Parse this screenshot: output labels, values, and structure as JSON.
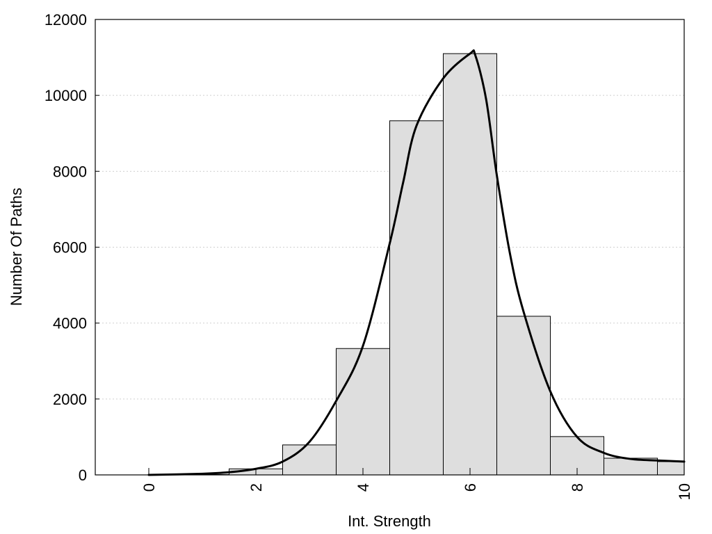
{
  "chart_data": {
    "type": "bar",
    "xlabel": "Int. Strength",
    "ylabel": "Number Of Paths",
    "xlim": [
      -1,
      10
    ],
    "ylim": [
      0,
      12000
    ],
    "x_ticks": [
      0,
      2,
      4,
      6,
      8,
      10
    ],
    "y_ticks": [
      0,
      2000,
      4000,
      6000,
      8000,
      10000,
      12000
    ],
    "grid": true,
    "bin_width": 1,
    "bins": [
      {
        "center": 0,
        "value": 0
      },
      {
        "center": 1,
        "value": 10
      },
      {
        "center": 2,
        "value": 160
      },
      {
        "center": 3,
        "value": 790
      },
      {
        "center": 4,
        "value": 3330
      },
      {
        "center": 5,
        "value": 9330
      },
      {
        "center": 6,
        "value": 11100
      },
      {
        "center": 7,
        "value": 4180
      },
      {
        "center": 8,
        "value": 1010
      },
      {
        "center": 9,
        "value": 440
      },
      {
        "center": 10,
        "value": 350
      }
    ],
    "curve": {
      "x": [
        0,
        1,
        1.5,
        2,
        2.5,
        3,
        3.5,
        4,
        4.5,
        4.75,
        5,
        5.5,
        6,
        6.1,
        6.3,
        6.5,
        6.75,
        7,
        7.5,
        8,
        8.5,
        9,
        9.5,
        10
      ],
      "y": [
        0,
        30,
        70,
        160,
        350,
        870,
        1950,
        3400,
        6100,
        7700,
        9200,
        10450,
        11100,
        11050,
        9900,
        7900,
        5800,
        4300,
        2200,
        1000,
        580,
        420,
        380,
        350
      ]
    },
    "series_color": "#dedede",
    "curve_color": "#000000"
  }
}
